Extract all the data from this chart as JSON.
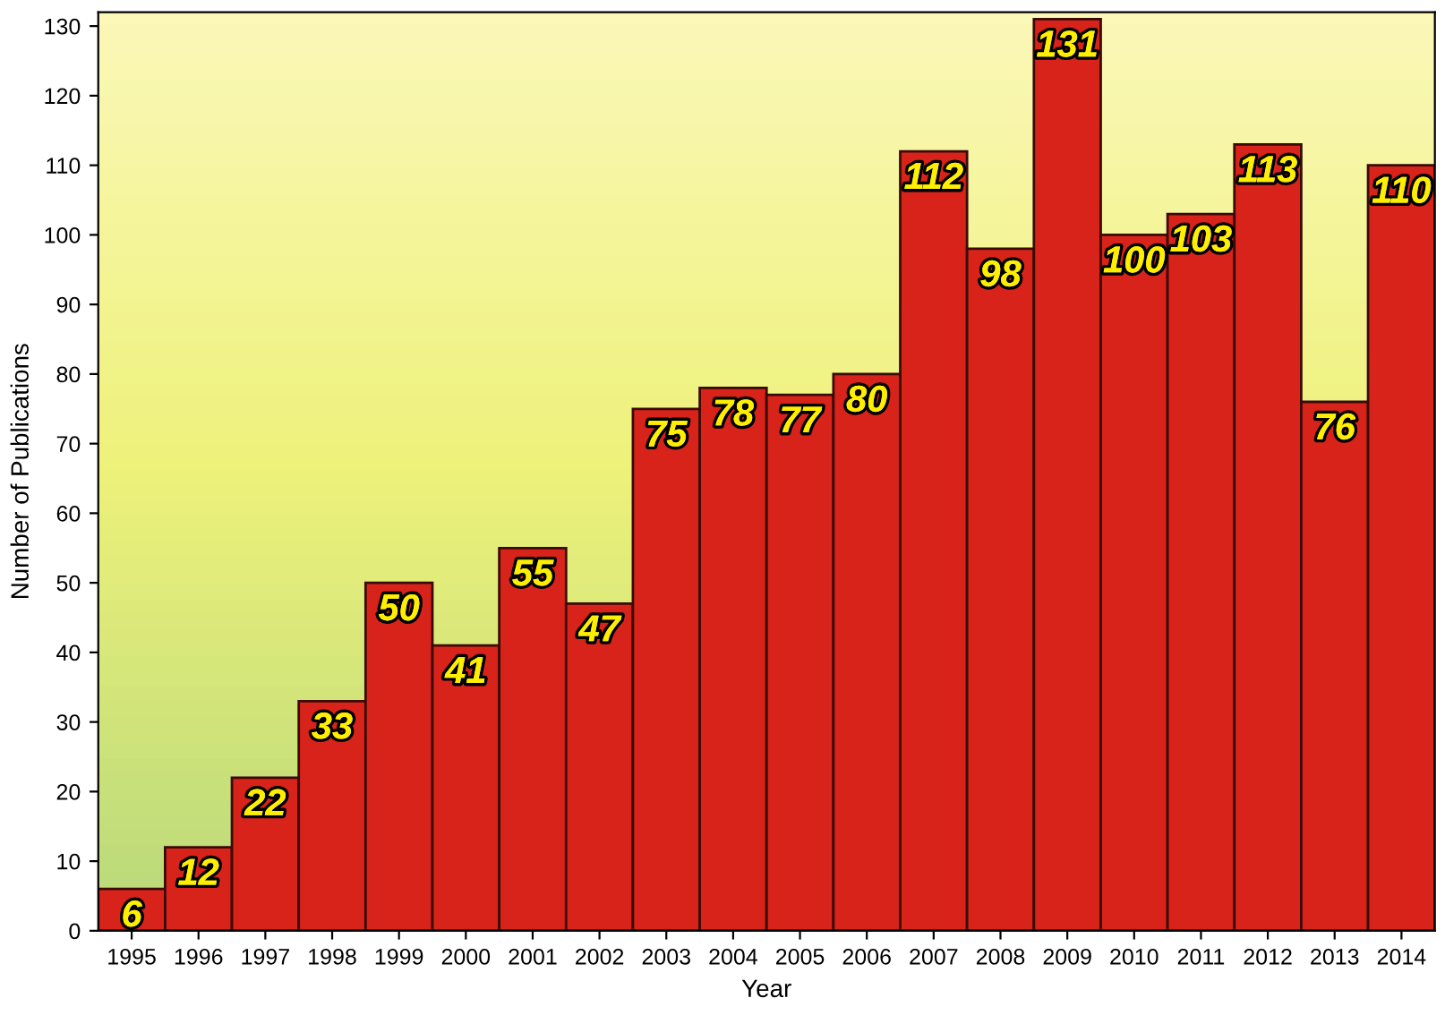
{
  "chart_data": {
    "type": "bar",
    "xlabel": "Year",
    "ylabel": "Number of Publications",
    "categories": [
      "1995",
      "1996",
      "1997",
      "1998",
      "1999",
      "2000",
      "2001",
      "2002",
      "2003",
      "2004",
      "2005",
      "2006",
      "2007",
      "2008",
      "2009",
      "2010",
      "2011",
      "2012",
      "2013",
      "2014"
    ],
    "values": [
      6,
      12,
      22,
      33,
      50,
      41,
      55,
      47,
      75,
      78,
      77,
      80,
      112,
      98,
      131,
      100,
      103,
      113,
      76,
      110
    ],
    "color": "#d8231b",
    "ylim": [
      0,
      132
    ],
    "yticks": [
      0,
      10,
      20,
      30,
      40,
      50,
      60,
      70,
      80,
      90,
      100,
      110,
      120,
      130
    ],
    "grid": false,
    "data_labels": true
  }
}
